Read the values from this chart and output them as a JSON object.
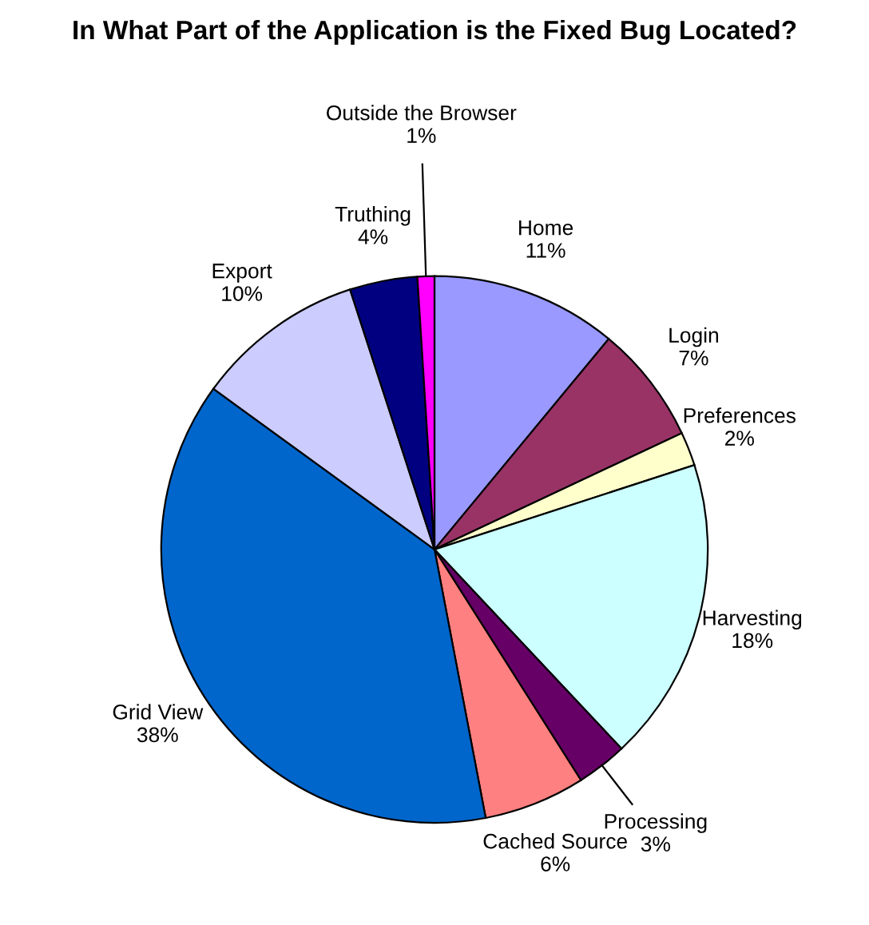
{
  "chart_data": {
    "type": "pie",
    "title": "In What Part of the Application is the Fixed Bug Located?",
    "categories": [
      "Home",
      "Login",
      "Preferences",
      "Harvesting",
      "Processing",
      "Cached Source",
      "Grid View",
      "Export",
      "Truthing",
      "Outside the Browser"
    ],
    "values": [
      11,
      7,
      2,
      18,
      3,
      6,
      38,
      10,
      4,
      1
    ],
    "value_labels": [
      "11%",
      "7%",
      "2%",
      "18%",
      "3%",
      "6%",
      "38%",
      "10%",
      "4%",
      "1%"
    ],
    "colors": [
      "#9999ff",
      "#993366",
      "#ffffcc",
      "#ccffff",
      "#660066",
      "#ff8080",
      "#0066cc",
      "#ccccff",
      "#000080",
      "#ff00ff"
    ],
    "legend": false
  }
}
